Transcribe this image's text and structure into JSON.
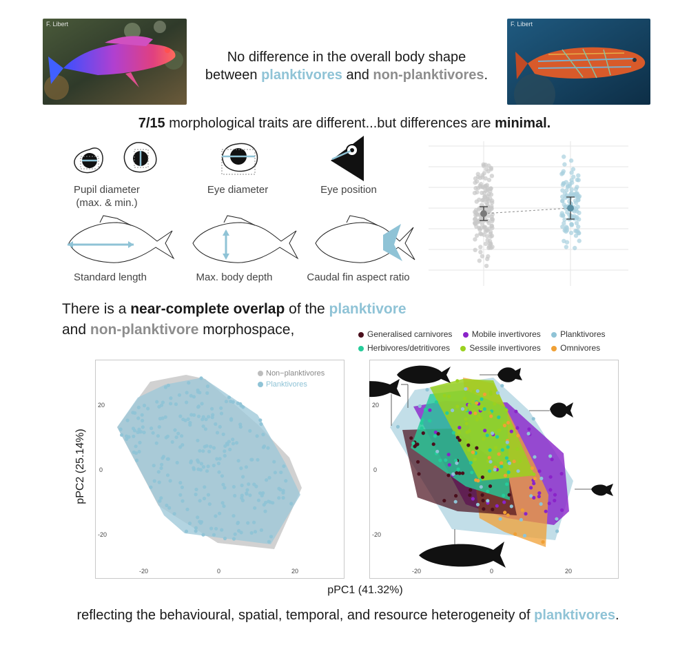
{
  "photos": {
    "left_credit": "F. Libert",
    "right_credit": "F. Libert"
  },
  "header": {
    "line1": "No difference in the overall body shape",
    "line2_pre": "between ",
    "line2_plank": "planktivores",
    "line2_mid": " and ",
    "line2_nonplank": "non-planktivores",
    "line2_post": "."
  },
  "subheading": {
    "bold1": "7/15",
    "middle": " morphological traits are different...but differences are ",
    "bold2": "minimal."
  },
  "traits": [
    {
      "label1": "Pupil diameter",
      "label2": "(max. & min.)"
    },
    {
      "label1": "Eye diameter",
      "label2": ""
    },
    {
      "label1": "Eye position",
      "label2": ""
    },
    {
      "label1": "Standard length",
      "label2": ""
    },
    {
      "label1": "Max. body depth",
      "label2": ""
    },
    {
      "label1": "Caudal fin aspect ratio",
      "label2": ""
    }
  ],
  "overlap_text": {
    "pre": "There is a ",
    "bold": "near-complete overlap",
    "mid": " of the ",
    "plank": "planktivore",
    "line2_pre": "and ",
    "nonplank": "non-planktivore",
    "line2_post": " morphospace,"
  },
  "left_legend": [
    "Non−planktivores",
    "Planktivores"
  ],
  "right_legend": [
    {
      "name": "Generalised carnivores",
      "color": "#4a0f1c"
    },
    {
      "name": "Mobile invertivores",
      "color": "#8a23c9"
    },
    {
      "name": "Planktivores",
      "color": "#8fc3d6"
    },
    {
      "name": "Herbivores/detritivores",
      "color": "#26cc9a"
    },
    {
      "name": "Sessile invertivores",
      "color": "#9ad11f"
    },
    {
      "name": "Omnivores",
      "color": "#f0a035"
    }
  ],
  "axes": {
    "ylabel": "pPC2 (25.14%)",
    "xlabel": "pPC1 (41.32%)",
    "left_x_ticks": [
      "-20",
      "0",
      "20"
    ],
    "left_y_ticks": [
      "20",
      "0",
      "-20"
    ],
    "right_x_ticks": [
      "-20",
      "0",
      "20"
    ],
    "right_y_ticks": [
      "20",
      "0",
      "-20"
    ]
  },
  "footer": {
    "pre": "reflecting the behavioural, spatial, temporal, and resource heterogeneity of ",
    "plank": "planktivores",
    "post": "."
  },
  "colors": {
    "plank": "#8fc3d6",
    "nonplank": "#8d8d8d"
  }
}
